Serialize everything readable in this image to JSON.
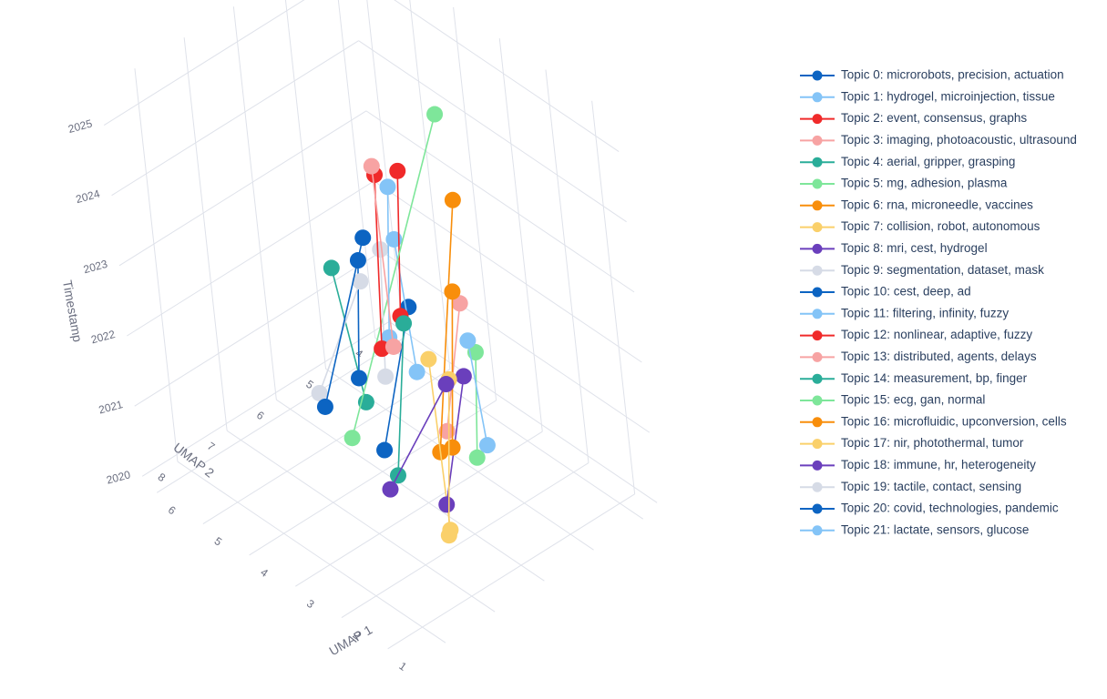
{
  "chart_data": {
    "type": "scatter3d",
    "scene": {
      "axes": {
        "x": {
          "title": "UMAP 1",
          "range": [
            0.5,
            6.3
          ],
          "ticks": [
            1,
            2,
            3,
            4,
            5,
            6
          ]
        },
        "y": {
          "title": "UMAP 2",
          "range": [
            3.7,
            8.7
          ],
          "ticks": [
            4,
            5,
            6,
            7,
            8
          ]
        },
        "z": {
          "title": "Timestamp",
          "range": [
            2019.9,
            2025.5
          ],
          "ticks": [
            2020,
            2021,
            2022,
            2023,
            2024,
            2025
          ]
        }
      },
      "grid": true,
      "legend_position": "right"
    },
    "series": [
      {
        "name": "Topic 0: microrobots, precision, actuation",
        "color": "#0c64c2",
        "points": [
          {
            "x": 3.9,
            "y": 6.0,
            "z": 2020.25
          },
          {
            "x": 3.1,
            "y": 5.9,
            "z": 2022.6
          }
        ]
      },
      {
        "name": "Topic 1: hydrogel, microinjection, tissue",
        "color": "#84c4f7",
        "points": [
          {
            "x": 4.3,
            "y": 4.9,
            "z": 2020.7
          },
          {
            "x": 4.5,
            "y": 4.9,
            "z": 2022.5
          }
        ]
      },
      {
        "name": "Topic 2: event, consensus, graphs",
        "color": "#f02a2a",
        "points": [
          {
            "x": 5.9,
            "y": 3.8,
            "z": 2020.3
          },
          {
            "x": 5.6,
            "y": 3.8,
            "z": 2022.5
          }
        ]
      },
      {
        "name": "Topic 3: imaging, photoacoustic, ultrasound",
        "color": "#f7a3a3",
        "points": [
          {
            "x": 3.5,
            "y": 5.1,
            "z": 2020.3
          },
          {
            "x": 3.0,
            "y": 5.0,
            "z": 2022.3
          }
        ]
      },
      {
        "name": "Topic 4: aerial, gripper, grasping",
        "color": "#2aad99",
        "points": [
          {
            "x": 4.7,
            "y": 5.6,
            "z": 2020.4
          },
          {
            "x": 4.8,
            "y": 5.9,
            "z": 2022.4
          }
        ]
      },
      {
        "name": "Topic 5: mg, adhesion, plasma",
        "color": "#7ee69a",
        "points": [
          {
            "x": 4.5,
            "y": 6.1,
            "z": 2020.2
          },
          {
            "x": 3.6,
            "y": 4.6,
            "z": 2024.55
          }
        ]
      },
      {
        "name": "Topic 6: rna, microneedle, vaccines",
        "color": "#f88e0b",
        "points": [
          {
            "x": 2.6,
            "y": 6.0,
            "z": 2020.8
          },
          {
            "x": 1.3,
            "y": 6.3,
            "z": 2025.1
          }
        ]
      },
      {
        "name": "Topic 7: collision, robot, autonomous",
        "color": "#fad06a",
        "points": [
          {
            "x": 1.7,
            "y": 6.7,
            "z": 2020.4
          },
          {
            "x": 1.9,
            "y": 6.6,
            "z": 2022.7
          }
        ]
      },
      {
        "name": "Topic 8: mri, cest, hydrogel",
        "color": "#6a3fbc",
        "points": [
          {
            "x": 1.6,
            "y": 6.8,
            "z": 2020.85
          },
          {
            "x": 1.0,
            "y": 6.7,
            "z": 2022.9
          }
        ]
      },
      {
        "name": "Topic 9: segmentation, dataset, mask",
        "color": "#d6dbe6",
        "points": [
          {
            "x": 4.8,
            "y": 5.1,
            "z": 2020.5
          },
          {
            "x": 4.6,
            "y": 5.1,
            "z": 2022.4
          }
        ]
      },
      {
        "name": "Topic 10: cest, deep, ad",
        "color": "#0c64c2",
        "points": [
          {
            "x": 5.3,
            "y": 5.2,
            "z": 2020.3
          },
          {
            "x": 4.9,
            "y": 5.3,
            "z": 2022.2
          }
        ]
      },
      {
        "name": "Topic 11: filtering, infinity, fuzzy",
        "color": "#84c4f7",
        "points": [
          {
            "x": 5.6,
            "y": 4.3,
            "z": 2020.35
          },
          {
            "x": 5.5,
            "y": 4.1,
            "z": 2022.45
          }
        ]
      },
      {
        "name": "Topic 12: nonlinear, adaptive, fuzzy",
        "color": "#f02a2a",
        "points": [
          {
            "x": 5.8,
            "y": 4.3,
            "z": 2020.1
          },
          {
            "x": 5.9,
            "y": 4.0,
            "z": 2022.4
          }
        ]
      },
      {
        "name": "Topic 13: distributed, agents, delays",
        "color": "#f7a3a3",
        "points": [
          {
            "x": 5.4,
            "y": 4.4,
            "z": 2020.35
          },
          {
            "x": 5.7,
            "y": 4.2,
            "z": 2022.7
          }
        ]
      },
      {
        "name": "Topic 14: measurement, bp, finger",
        "color": "#2aad99",
        "points": [
          {
            "x": 3.4,
            "y": 6.2,
            "z": 2020.2
          },
          {
            "x": 3.5,
            "y": 5.7,
            "z": 2022.1
          }
        ]
      },
      {
        "name": "Topic 15: ecg, gan, normal",
        "color": "#7ee69a",
        "points": [
          {
            "x": 2.0,
            "y": 5.8,
            "z": 2020.9
          },
          {
            "x": 1.4,
            "y": 6.1,
            "z": 2022.8
          }
        ]
      },
      {
        "name": "Topic 16: microfluidic, upconversion, cells",
        "color": "#f88e0b",
        "points": [
          {
            "x": 2.8,
            "y": 5.6,
            "z": 2020.6
          },
          {
            "x": 2.9,
            "y": 5.2,
            "z": 2022.6
          }
        ]
      },
      {
        "name": "Topic 17: nir, photothermal, tumor",
        "color": "#fad06a",
        "points": [
          {
            "x": 1.5,
            "y": 6.9,
            "z": 2020.5
          },
          {
            "x": 1.6,
            "y": 6.5,
            "z": 2022.5
          }
        ]
      },
      {
        "name": "Topic 18: immune, hr, heterogeneity",
        "color": "#6a3fbc",
        "points": [
          {
            "x": 3.0,
            "y": 6.7,
            "z": 2020.4
          },
          {
            "x": 1.8,
            "y": 6.4,
            "z": 2022.3
          }
        ]
      },
      {
        "name": "Topic 19: tactile, contact, sensing",
        "color": "#d6dbe6",
        "points": [
          {
            "x": 5.4,
            "y": 5.9,
            "z": 2020.35
          },
          {
            "x": 4.9,
            "y": 5.3,
            "z": 2021.9
          }
        ]
      },
      {
        "name": "Topic 20: covid, technologies, pandemic",
        "color": "#0c64c2",
        "points": [
          {
            "x": 5.3,
            "y": 5.9,
            "z": 2020.2
          },
          {
            "x": 5.1,
            "y": 5.0,
            "z": 2022.3
          }
        ]
      },
      {
        "name": "Topic 21: lactate, sensors, glucose",
        "color": "#84c4f7",
        "points": [
          {
            "x": 2.1,
            "y": 5.5,
            "z": 2020.9
          },
          {
            "x": 1.8,
            "y": 5.9,
            "z": 2022.7
          }
        ]
      }
    ]
  }
}
